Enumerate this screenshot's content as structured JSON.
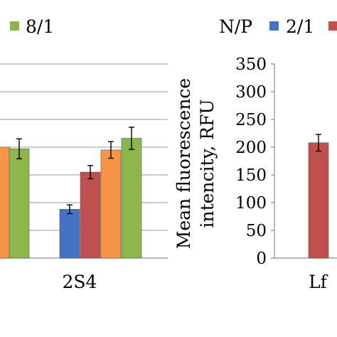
{
  "legend_left": {
    "entries": [
      {
        "label": "8/1",
        "color": "#8db64d"
      }
    ]
  },
  "legend_right": {
    "title": "N/P",
    "entries": [
      {
        "label": "2/1",
        "color": "#4472c4"
      },
      {
        "label": "",
        "color": "#c0504d"
      }
    ]
  },
  "chart_data": [
    {
      "type": "bar",
      "categories": [
        "2S4"
      ],
      "series": [
        {
          "name": "2/1",
          "color": "#4472c4",
          "values": [
            {
              "c": "2S4",
              "v": 88,
              "err": 8
            }
          ]
        },
        {
          "name": "",
          "color": "#c0504d",
          "values": [
            {
              "c": "2S4",
              "v": 155,
              "err": 12
            }
          ]
        },
        {
          "name": "",
          "color": "#f79646",
          "values": [
            {
              "c": "",
              "v": 200,
              "err": 0
            },
            {
              "c": "2S4",
              "v": 195,
              "err": 15
            }
          ]
        },
        {
          "name": "8/1",
          "color": "#8db64d",
          "values": [
            {
              "c": "",
              "v": 197,
              "err": 18
            },
            {
              "c": "2S4",
              "v": 216,
              "err": 20
            }
          ]
        }
      ],
      "ylim": [
        0,
        350
      ],
      "grid": true,
      "note": "left panel cropped; y-axis ticks not visible"
    },
    {
      "type": "bar",
      "categories": [
        "Lf"
      ],
      "ylabel_lines": [
        "Mean fluorescence",
        "intencity, RFU"
      ],
      "yticks": [
        "0",
        "50",
        "100",
        "150",
        "200",
        "250",
        "300",
        "350"
      ],
      "ylim": [
        0,
        350
      ],
      "grid": false,
      "series": [
        {
          "name": "2/1",
          "color": "#c0504d",
          "values": [
            {
              "c": "Lf",
              "v": 208,
              "err": 15
            }
          ]
        }
      ]
    }
  ]
}
